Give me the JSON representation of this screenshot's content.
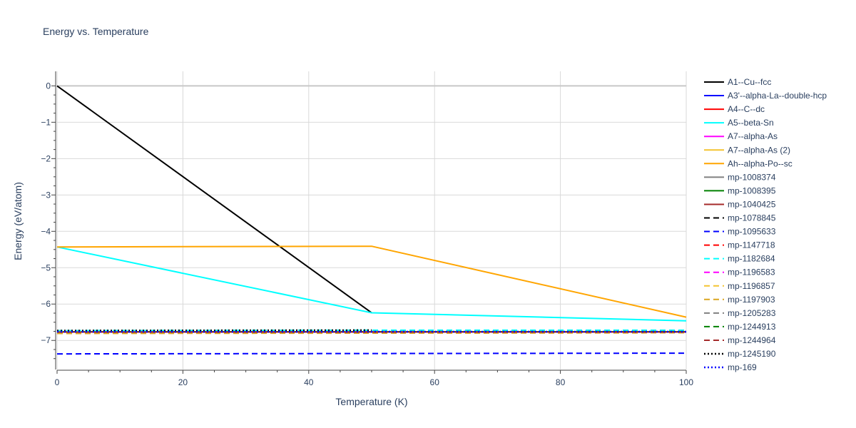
{
  "chart_data": {
    "type": "line",
    "title": "Energy vs. Temperature",
    "xlabel": "Temperature (K)",
    "ylabel": "Energy (eV/atom)",
    "xlim": [
      0,
      100
    ],
    "ylim": [
      -7.8,
      0.4
    ],
    "x_ticks": [
      0,
      20,
      40,
      60,
      80,
      100
    ],
    "y_ticks": [
      0,
      -1,
      -2,
      -3,
      -4,
      -5,
      -6,
      -7
    ],
    "y_tick_labels": [
      "0",
      "−1",
      "−2",
      "−3",
      "−4",
      "−5",
      "−6",
      "−7"
    ],
    "grid": true,
    "legend_position": "right",
    "series": [
      {
        "name": "A1--Cu--fcc",
        "color": "#000000",
        "dash": "solid",
        "x": [
          0,
          50
        ],
        "y": [
          0.0,
          -6.24
        ]
      },
      {
        "name": "A3'--alpha-La--double-hcp",
        "color": "#0000ff",
        "dash": "solid",
        "x": [
          0,
          50,
          100
        ],
        "y": [
          -6.76,
          -6.76,
          -6.76
        ]
      },
      {
        "name": "A4--C--dc",
        "color": "#ff0000",
        "dash": "solid",
        "x": [
          0,
          50,
          100
        ],
        "y": [
          -6.77,
          -6.77,
          -6.77
        ]
      },
      {
        "name": "A5--beta-Sn",
        "color": "#00ffff",
        "dash": "solid",
        "x": [
          0,
          50,
          100
        ],
        "y": [
          -4.43,
          -6.24,
          -6.46
        ]
      },
      {
        "name": "A7--alpha-As",
        "color": "#ff00ff",
        "dash": "solid",
        "x": [
          0,
          50,
          100
        ],
        "y": [
          -6.77,
          -6.77,
          -6.77
        ]
      },
      {
        "name": "A7--alpha-As (2)",
        "color": "#f4c430",
        "dash": "solid",
        "x": [
          0,
          50,
          100
        ],
        "y": [
          -6.77,
          -6.77,
          -6.77
        ]
      },
      {
        "name": "Ah--alpha-Po--sc",
        "color": "#ffa500",
        "dash": "solid",
        "x": [
          0,
          50,
          100
        ],
        "y": [
          -4.43,
          -4.41,
          -6.36
        ]
      },
      {
        "name": "mp-1008374",
        "color": "#808080",
        "dash": "solid",
        "x": [
          0,
          50,
          100
        ],
        "y": [
          -6.76,
          -6.76,
          -6.76
        ]
      },
      {
        "name": "mp-1008395",
        "color": "#008000",
        "dash": "solid",
        "x": [
          0,
          50,
          100
        ],
        "y": [
          -6.76,
          -6.76,
          -6.76
        ]
      },
      {
        "name": "mp-1040425",
        "color": "#a52a2a",
        "dash": "solid",
        "x": [
          0,
          50,
          100
        ],
        "y": [
          -6.77,
          -6.77,
          -6.77
        ]
      },
      {
        "name": "mp-1078845",
        "color": "#000000",
        "dash": "dash",
        "x": [
          0,
          50,
          100
        ],
        "y": [
          -6.74,
          -6.74,
          -6.74
        ]
      },
      {
        "name": "mp-1095633",
        "color": "#0000ff",
        "dash": "dash",
        "x": [
          0,
          50,
          100
        ],
        "y": [
          -7.37,
          -7.36,
          -7.35
        ]
      },
      {
        "name": "mp-1147718",
        "color": "#ff0000",
        "dash": "dash",
        "x": [
          0,
          50,
          100
        ],
        "y": [
          -6.78,
          -6.78,
          -6.77
        ]
      },
      {
        "name": "mp-1182684",
        "color": "#00ffff",
        "dash": "dash",
        "x": [
          0,
          50,
          100
        ],
        "y": [
          -6.73,
          -6.72,
          -6.72
        ]
      },
      {
        "name": "mp-1196583",
        "color": "#ff00ff",
        "dash": "dash",
        "x": [
          0,
          50,
          100
        ],
        "y": [
          -6.78,
          -6.78,
          -6.77
        ]
      },
      {
        "name": "mp-1196857",
        "color": "#f4c430",
        "dash": "dash",
        "x": [
          0,
          50,
          100
        ],
        "y": [
          -6.8,
          -6.8,
          -6.79
        ]
      },
      {
        "name": "mp-1197903",
        "color": "#daa520",
        "dash": "dash",
        "x": [
          0,
          50,
          100
        ],
        "y": [
          -6.81,
          -6.8,
          -6.79
        ]
      },
      {
        "name": "mp-1205283",
        "color": "#808080",
        "dash": "dash",
        "x": [
          0,
          50,
          100
        ],
        "y": [
          -6.77,
          -6.76,
          -6.76
        ]
      },
      {
        "name": "mp-1244913",
        "color": "#008000",
        "dash": "dash",
        "x": [
          0,
          50,
          100
        ],
        "y": [
          -6.77,
          -6.77,
          -6.76
        ]
      },
      {
        "name": "mp-1244964",
        "color": "#a52a2a",
        "dash": "dash",
        "x": [
          0,
          50,
          100
        ],
        "y": [
          -6.77,
          -6.77,
          -6.77
        ]
      },
      {
        "name": "mp-1245190",
        "color": "#000000",
        "dash": "dot",
        "x": [
          0,
          50
        ],
        "y": [
          -6.73,
          -6.72
        ]
      },
      {
        "name": "mp-169",
        "color": "#0000ff",
        "dash": "dot",
        "x": [
          0,
          50,
          100
        ],
        "y": [
          -6.76,
          -6.76,
          -6.76
        ]
      }
    ]
  }
}
